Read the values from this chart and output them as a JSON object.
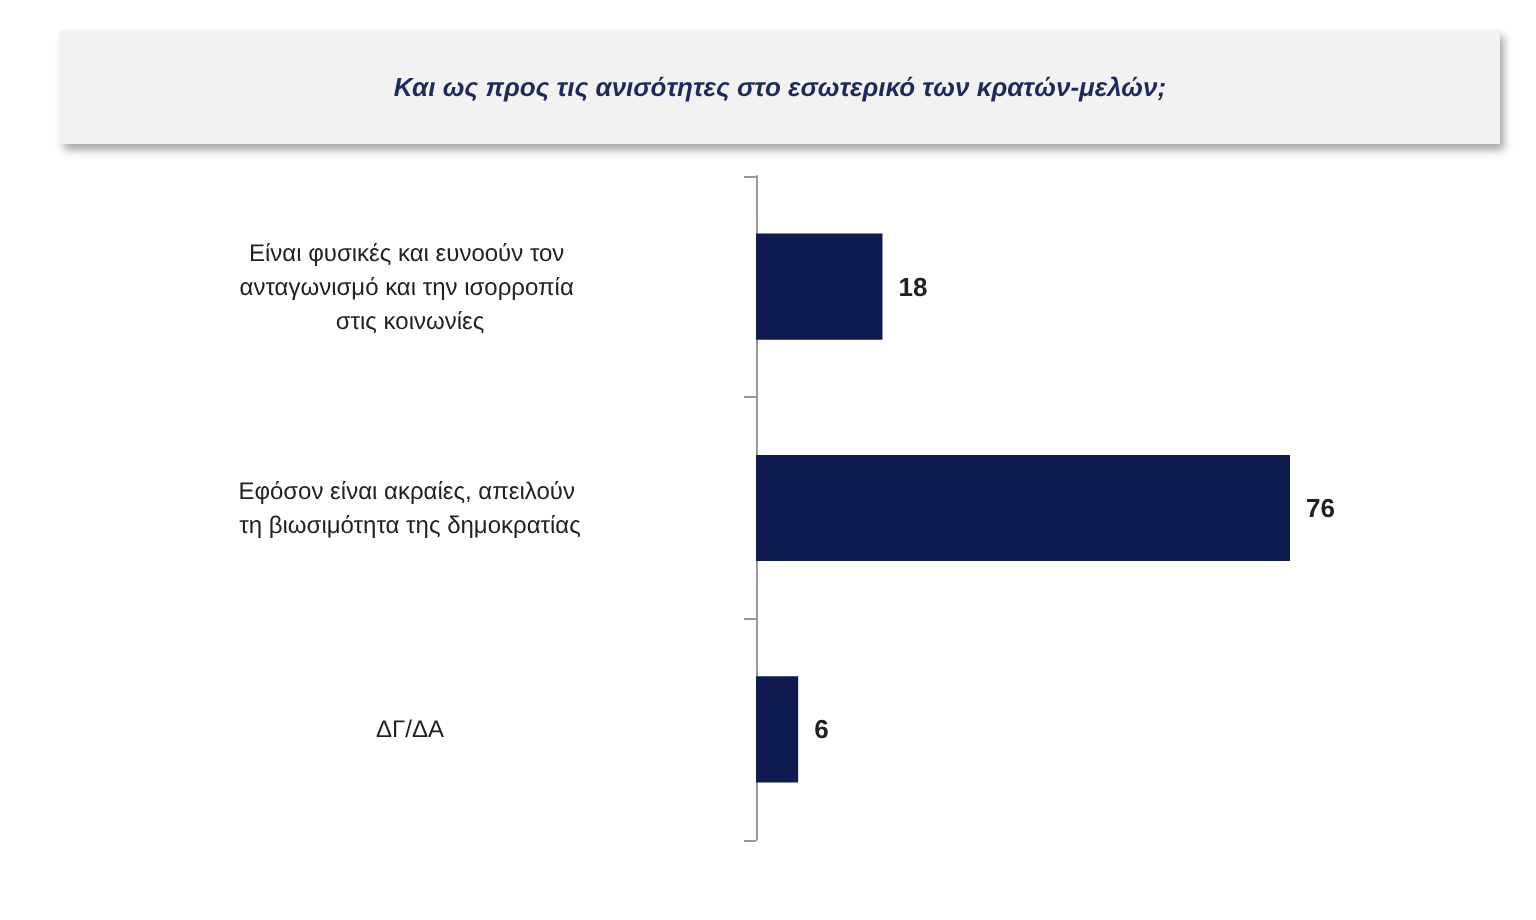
{
  "chart_data": {
    "type": "bar",
    "orientation": "horizontal",
    "title": "Και ως προς τις ανισότητες στο εσωτερικό των κρατών-μελών;",
    "categories": [
      "Είναι φυσικές και ευνοούν τον ανταγωνισμό και την ισορροπία στις κοινωνίες",
      "Εφόσον είναι ακραίες, απειλούν τη βιωσιμότητα της δημοκρατίας",
      "ΔΓ/ΔΑ"
    ],
    "values": [
      18,
      76,
      6
    ],
    "color": "#0d1b4f",
    "data_labels": true
  }
}
